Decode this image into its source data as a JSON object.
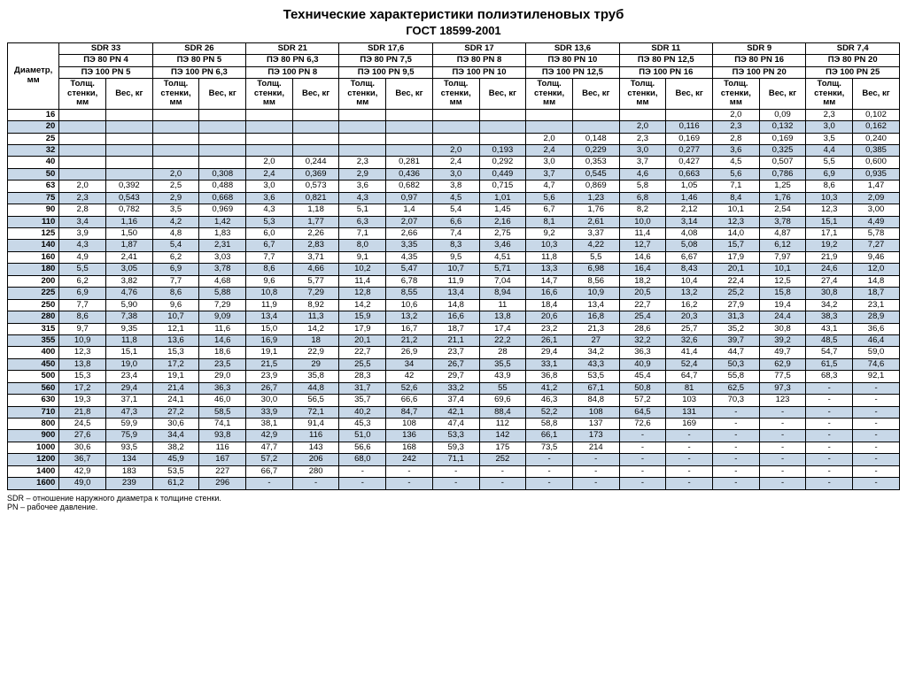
{
  "title": "Технические характеристики полиэтиленовых труб",
  "subtitle": "ГОСТ 18599-2001",
  "row_label": "Диаметр, мм",
  "sub_headers": {
    "thk": "Толщ. стенки, мм",
    "wt": "Вес, кг"
  },
  "columns": [
    {
      "sdr": "SDR 33",
      "pe80": "ПЭ 80 PN 4",
      "pe100": "ПЭ 100 PN 5"
    },
    {
      "sdr": "SDR 26",
      "pe80": "ПЭ 80 PN 5",
      "pe100": "ПЭ 100 PN 6,3"
    },
    {
      "sdr": "SDR 21",
      "pe80": "ПЭ 80 PN 6,3",
      "pe100": "ПЭ 100 PN 8"
    },
    {
      "sdr": "SDR 17,6",
      "pe80": "ПЭ 80 PN 7,5",
      "pe100": "ПЭ 100 PN 9,5"
    },
    {
      "sdr": "SDR 17",
      "pe80": "ПЭ 80 PN 8",
      "pe100": "ПЭ 100 PN 10"
    },
    {
      "sdr": "SDR 13,6",
      "pe80": "ПЭ 80 PN 10",
      "pe100": "ПЭ 100 PN 12,5"
    },
    {
      "sdr": "SDR 11",
      "pe80": "ПЭ 80 PN 12,5",
      "pe100": "ПЭ 100 PN 16"
    },
    {
      "sdr": "SDR 9",
      "pe80": "ПЭ 80 PN 16",
      "pe100": "ПЭ 100 PN 20"
    },
    {
      "sdr": "SDR 7,4",
      "pe80": "ПЭ 80 PN 20",
      "pe100": "ПЭ 100 PN 25"
    }
  ],
  "rows": [
    {
      "d": "16",
      "v": [
        "",
        "",
        "",
        "",
        "",
        "",
        "",
        "",
        "",
        "",
        "",
        "",
        "",
        "",
        "2,0",
        "0,09",
        "2,3",
        "0,102"
      ]
    },
    {
      "d": "20",
      "v": [
        "",
        "",
        "",
        "",
        "",
        "",
        "",
        "",
        "",
        "",
        "",
        "",
        "2,0",
        "0,116",
        "2,3",
        "0,132",
        "3,0",
        "0,162"
      ]
    },
    {
      "d": "25",
      "v": [
        "",
        "",
        "",
        "",
        "",
        "",
        "",
        "",
        "",
        "",
        "2,0",
        "0,148",
        "2,3",
        "0,169",
        "2,8",
        "0,169",
        "3,5",
        "0,240"
      ]
    },
    {
      "d": "32",
      "v": [
        "",
        "",
        "",
        "",
        "",
        "",
        "",
        "",
        "2,0",
        "0,193",
        "2,4",
        "0,229",
        "3,0",
        "0,277",
        "3,6",
        "0,325",
        "4,4",
        "0,385"
      ]
    },
    {
      "d": "40",
      "v": [
        "",
        "",
        "",
        "",
        "2,0",
        "0,244",
        "2,3",
        "0,281",
        "2,4",
        "0,292",
        "3,0",
        "0,353",
        "3,7",
        "0,427",
        "4,5",
        "0,507",
        "5,5",
        "0,600"
      ]
    },
    {
      "d": "50",
      "v": [
        "",
        "",
        "2,0",
        "0,308",
        "2,4",
        "0,369",
        "2,9",
        "0,436",
        "3,0",
        "0,449",
        "3,7",
        "0,545",
        "4,6",
        "0,663",
        "5,6",
        "0,786",
        "6,9",
        "0,935"
      ]
    },
    {
      "d": "63",
      "v": [
        "2,0",
        "0,392",
        "2,5",
        "0,488",
        "3,0",
        "0,573",
        "3,6",
        "0,682",
        "3,8",
        "0,715",
        "4,7",
        "0,869",
        "5,8",
        "1,05",
        "7,1",
        "1,25",
        "8,6",
        "1,47"
      ]
    },
    {
      "d": "75",
      "v": [
        "2,3",
        "0,543",
        "2,9",
        "0,668",
        "3,6",
        "0,821",
        "4,3",
        "0,97",
        "4,5",
        "1,01",
        "5,6",
        "1,23",
        "6,8",
        "1,46",
        "8,4",
        "1,76",
        "10,3",
        "2,09"
      ]
    },
    {
      "d": "90",
      "v": [
        "2,8",
        "0,782",
        "3,5",
        "0,969",
        "4,3",
        "1,18",
        "5,1",
        "1,4",
        "5,4",
        "1,45",
        "6,7",
        "1,76",
        "8,2",
        "2,12",
        "10,1",
        "2,54",
        "12,3",
        "3,00"
      ]
    },
    {
      "d": "110",
      "v": [
        "3,4",
        "1,16",
        "4,2",
        "1,42",
        "5,3",
        "1,77",
        "6,3",
        "2,07",
        "6,6",
        "2,16",
        "8,1",
        "2,61",
        "10,0",
        "3,14",
        "12,3",
        "3,78",
        "15,1",
        "4,49"
      ]
    },
    {
      "d": "125",
      "v": [
        "3,9",
        "1,50",
        "4,8",
        "1,83",
        "6,0",
        "2,26",
        "7,1",
        "2,66",
        "7,4",
        "2,75",
        "9,2",
        "3,37",
        "11,4",
        "4,08",
        "14,0",
        "4,87",
        "17,1",
        "5,78"
      ]
    },
    {
      "d": "140",
      "v": [
        "4,3",
        "1,87",
        "5,4",
        "2,31",
        "6,7",
        "2,83",
        "8,0",
        "3,35",
        "8,3",
        "3,46",
        "10,3",
        "4,22",
        "12,7",
        "5,08",
        "15,7",
        "6,12",
        "19,2",
        "7,27"
      ]
    },
    {
      "d": "160",
      "v": [
        "4,9",
        "2,41",
        "6,2",
        "3,03",
        "7,7",
        "3,71",
        "9,1",
        "4,35",
        "9,5",
        "4,51",
        "11,8",
        "5,5",
        "14,6",
        "6,67",
        "17,9",
        "7,97",
        "21,9",
        "9,46"
      ]
    },
    {
      "d": "180",
      "v": [
        "5,5",
        "3,05",
        "6,9",
        "3,78",
        "8,6",
        "4,66",
        "10,2",
        "5,47",
        "10,7",
        "5,71",
        "13,3",
        "6,98",
        "16,4",
        "8,43",
        "20,1",
        "10,1",
        "24,6",
        "12,0"
      ]
    },
    {
      "d": "200",
      "v": [
        "6,2",
        "3,82",
        "7,7",
        "4,68",
        "9,6",
        "5,77",
        "11,4",
        "6,78",
        "11,9",
        "7,04",
        "14,7",
        "8,56",
        "18,2",
        "10,4",
        "22,4",
        "12,5",
        "27,4",
        "14,8"
      ]
    },
    {
      "d": "225",
      "v": [
        "6,9",
        "4,76",
        "8,6",
        "5,88",
        "10,8",
        "7,29",
        "12,8",
        "8,55",
        "13,4",
        "8,94",
        "16,6",
        "10,9",
        "20,5",
        "13,2",
        "25,2",
        "15,8",
        "30,8",
        "18,7"
      ]
    },
    {
      "d": "250",
      "v": [
        "7,7",
        "5,90",
        "9,6",
        "7,29",
        "11,9",
        "8,92",
        "14,2",
        "10,6",
        "14,8",
        "11",
        "18,4",
        "13,4",
        "22,7",
        "16,2",
        "27,9",
        "19,4",
        "34,2",
        "23,1"
      ]
    },
    {
      "d": "280",
      "v": [
        "8,6",
        "7,38",
        "10,7",
        "9,09",
        "13,4",
        "11,3",
        "15,9",
        "13,2",
        "16,6",
        "13,8",
        "20,6",
        "16,8",
        "25,4",
        "20,3",
        "31,3",
        "24,4",
        "38,3",
        "28,9"
      ]
    },
    {
      "d": "315",
      "v": [
        "9,7",
        "9,35",
        "12,1",
        "11,6",
        "15,0",
        "14,2",
        "17,9",
        "16,7",
        "18,7",
        "17,4",
        "23,2",
        "21,3",
        "28,6",
        "25,7",
        "35,2",
        "30,8",
        "43,1",
        "36,6"
      ]
    },
    {
      "d": "355",
      "v": [
        "10,9",
        "11,8",
        "13,6",
        "14,6",
        "16,9",
        "18",
        "20,1",
        "21,2",
        "21,1",
        "22,2",
        "26,1",
        "27",
        "32,2",
        "32,6",
        "39,7",
        "39,2",
        "48,5",
        "46,4"
      ]
    },
    {
      "d": "400",
      "v": [
        "12,3",
        "15,1",
        "15,3",
        "18,6",
        "19,1",
        "22,9",
        "22,7",
        "26,9",
        "23,7",
        "28",
        "29,4",
        "34,2",
        "36,3",
        "41,4",
        "44,7",
        "49,7",
        "54,7",
        "59,0"
      ]
    },
    {
      "d": "450",
      "v": [
        "13,8",
        "19,0",
        "17,2",
        "23,5",
        "21,5",
        "29",
        "25,5",
        "34",
        "26,7",
        "35,5",
        "33,1",
        "43,3",
        "40,9",
        "52,4",
        "50,3",
        "62,9",
        "61,5",
        "74,6"
      ]
    },
    {
      "d": "500",
      "v": [
        "15,3",
        "23,4",
        "19,1",
        "29,0",
        "23,9",
        "35,8",
        "28,3",
        "42",
        "29,7",
        "43,9",
        "36,8",
        "53,5",
        "45,4",
        "64,7",
        "55,8",
        "77,5",
        "68,3",
        "92,1"
      ]
    },
    {
      "d": "560",
      "v": [
        "17,2",
        "29,4",
        "21,4",
        "36,3",
        "26,7",
        "44,8",
        "31,7",
        "52,6",
        "33,2",
        "55",
        "41,2",
        "67,1",
        "50,8",
        "81",
        "62,5",
        "97,3",
        "-",
        "-"
      ]
    },
    {
      "d": "630",
      "v": [
        "19,3",
        "37,1",
        "24,1",
        "46,0",
        "30,0",
        "56,5",
        "35,7",
        "66,6",
        "37,4",
        "69,6",
        "46,3",
        "84,8",
        "57,2",
        "103",
        "70,3",
        "123",
        "-",
        "-"
      ]
    },
    {
      "d": "710",
      "v": [
        "21,8",
        "47,3",
        "27,2",
        "58,5",
        "33,9",
        "72,1",
        "40,2",
        "84,7",
        "42,1",
        "88,4",
        "52,2",
        "108",
        "64,5",
        "131",
        "-",
        "-",
        "-",
        "-"
      ]
    },
    {
      "d": "800",
      "v": [
        "24,5",
        "59,9",
        "30,6",
        "74,1",
        "38,1",
        "91,4",
        "45,3",
        "108",
        "47,4",
        "112",
        "58,8",
        "137",
        "72,6",
        "169",
        "-",
        "-",
        "-",
        "-"
      ]
    },
    {
      "d": "900",
      "v": [
        "27,6",
        "75,9",
        "34,4",
        "93,8",
        "42,9",
        "116",
        "51,0",
        "136",
        "53,3",
        "142",
        "66,1",
        "173",
        "-",
        "-",
        "-",
        "-",
        "-",
        "-"
      ]
    },
    {
      "d": "1000",
      "v": [
        "30,6",
        "93,5",
        "38,2",
        "116",
        "47,7",
        "143",
        "56,6",
        "168",
        "59,3",
        "175",
        "73,5",
        "214",
        "-",
        "-",
        "-",
        "-",
        "-",
        "-"
      ]
    },
    {
      "d": "1200",
      "v": [
        "36,7",
        "134",
        "45,9",
        "167",
        "57,2",
        "206",
        "68,0",
        "242",
        "71,1",
        "252",
        "-",
        "-",
        "-",
        "-",
        "-",
        "-",
        "-",
        "-"
      ]
    },
    {
      "d": "1400",
      "v": [
        "42,9",
        "183",
        "53,5",
        "227",
        "66,7",
        "280",
        "-",
        "-",
        "-",
        "-",
        "-",
        "-",
        "-",
        "-",
        "-",
        "-",
        "-",
        "-"
      ]
    },
    {
      "d": "1600",
      "v": [
        "49,0",
        "239",
        "61,2",
        "296",
        "-",
        "-",
        "-",
        "-",
        "-",
        "-",
        "-",
        "-",
        "-",
        "-",
        "-",
        "-",
        "-",
        "-"
      ]
    }
  ],
  "alt_bg": "#c8d8e8",
  "footnotes": [
    "SDR – отношение наружного диаметра к толщине стенки.",
    "PN – рабочее давление."
  ]
}
